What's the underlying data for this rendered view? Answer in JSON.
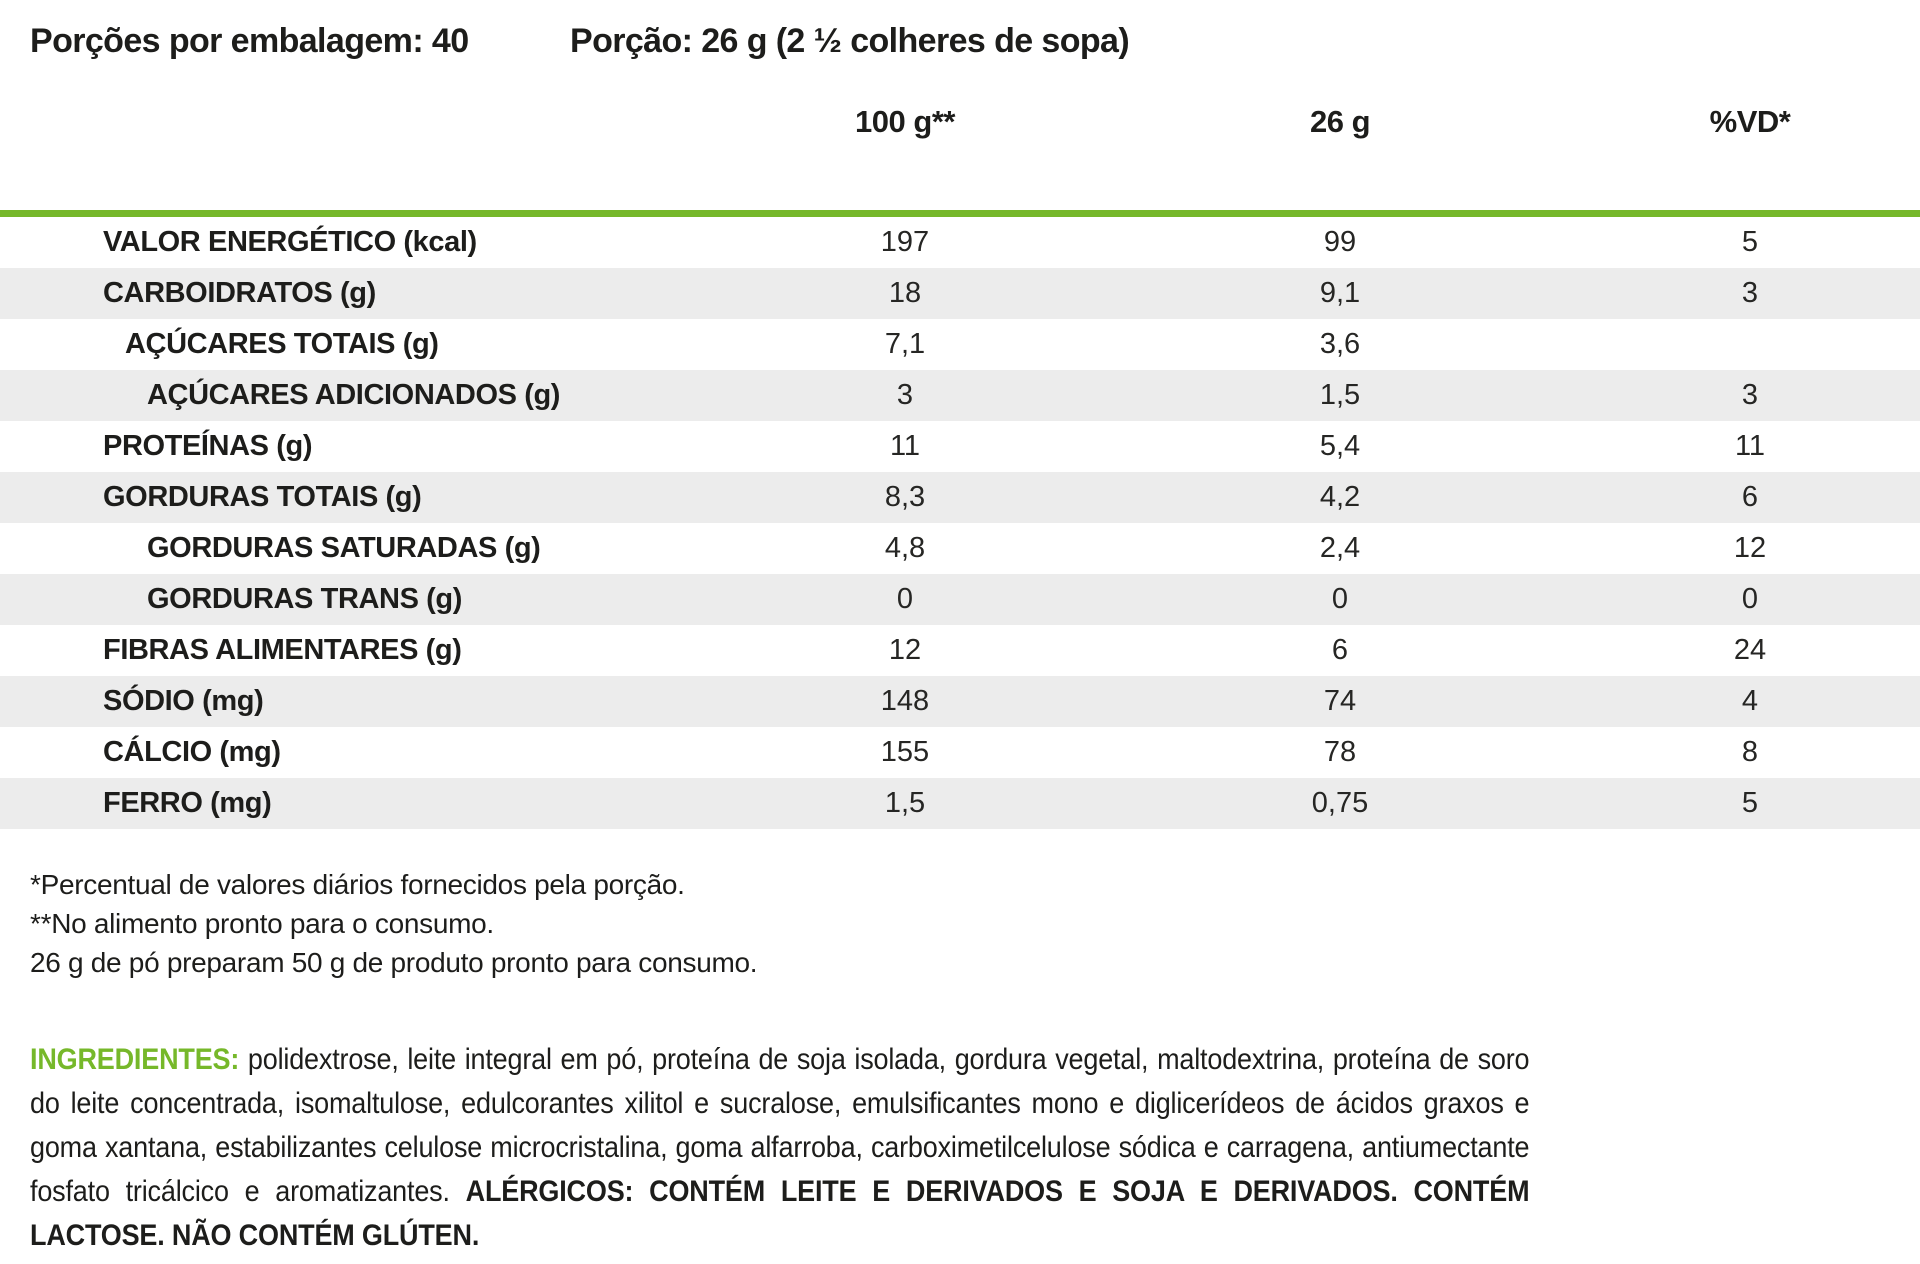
{
  "header": {
    "servings_per_package": "Porções por embalagem: 40",
    "serving_size": "Porção: 26 g (2 ½ colheres de sopa)"
  },
  "table": {
    "columns": [
      "100 g**",
      "26 g",
      "%VD*"
    ],
    "rows": [
      {
        "label": "VALOR ENERGÉTICO (kcal)",
        "per_100g": "197",
        "per_26g": "99",
        "pct_vd": "5"
      },
      {
        "label": "CARBOIDRATOS (g)",
        "per_100g": "18",
        "per_26g": "9,1",
        "pct_vd": "3"
      },
      {
        "label": "AÇÚCARES TOTAIS (g)",
        "per_100g": "7,1",
        "per_26g": "3,6",
        "pct_vd": ""
      },
      {
        "label": "AÇÚCARES ADICIONADOS (g)",
        "per_100g": "3",
        "per_26g": "1,5",
        "pct_vd": "3"
      },
      {
        "label": "PROTEÍNAS (g)",
        "per_100g": "11",
        "per_26g": "5,4",
        "pct_vd": "11"
      },
      {
        "label": "GORDURAS TOTAIS (g)",
        "per_100g": "8,3",
        "per_26g": "4,2",
        "pct_vd": "6"
      },
      {
        "label": "GORDURAS SATURADAS (g)",
        "per_100g": "4,8",
        "per_26g": "2,4",
        "pct_vd": "12"
      },
      {
        "label": "GORDURAS TRANS (g)",
        "per_100g": "0",
        "per_26g": "0",
        "pct_vd": "0"
      },
      {
        "label": "FIBRAS ALIMENTARES (g)",
        "per_100g": "12",
        "per_26g": "6",
        "pct_vd": "24"
      },
      {
        "label": "SÓDIO (mg)",
        "per_100g": "148",
        "per_26g": "74",
        "pct_vd": "4"
      },
      {
        "label": "CÁLCIO (mg)",
        "per_100g": "155",
        "per_26g": "78",
        "pct_vd": "8"
      },
      {
        "label": "FERRO (mg)",
        "per_100g": "1,5",
        "per_26g": "0,75",
        "pct_vd": "5"
      }
    ]
  },
  "footnotes": [
    "*Percentual de valores diários fornecidos pela porção.",
    "**No alimento pronto para o consumo.",
    "26 g de pó preparam 50 g de produto pronto para consumo."
  ],
  "ingredients": {
    "label": "INGREDIENTES:",
    "text": " polidextrose, leite integral em pó, proteína de soja isolada, gordura vegetal, maltodextrina, proteína de soro do leite concentrada, isomaltulose, edulcorantes xilitol e sucralose, emulsificantes mono e diglicerídeos de ácidos graxos e goma xantana, estabilizantes celulose microcristalina, goma alfarroba, carboximetilcelulose sódica e carragena, antiumectante fosfato tricálcico e aromatizantes. ",
    "allergens": "ALÉRGICOS: CONTÉM LEITE E DERIVADOS E SOJA E DERIVADOS. CONTÉM LACTOSE. NÃO CONTÉM GLÚTEN."
  },
  "colors": {
    "accent_green": "#76b82a",
    "row_shade": "#ececec",
    "text": "#1d1d1b"
  }
}
